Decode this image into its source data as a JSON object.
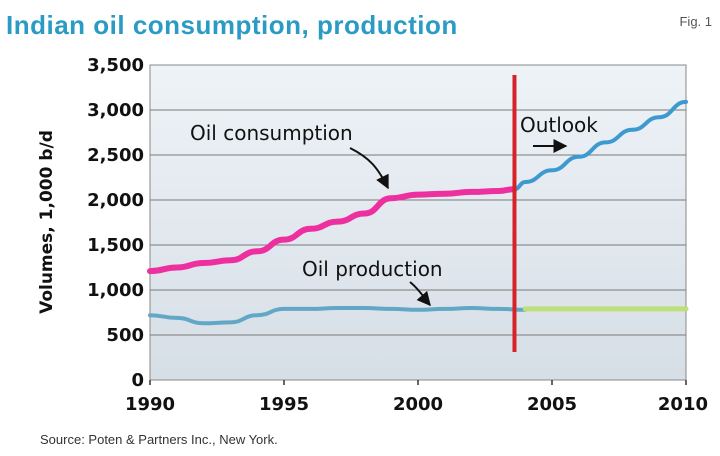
{
  "chart_data": {
    "type": "line",
    "title": "Indian oil consumption, production",
    "figure_label": "Fig. 1",
    "ylabel": "Volumes, 1,000 b/d",
    "xlabel": "",
    "xlim": [
      1990,
      2010
    ],
    "ylim": [
      0,
      3500
    ],
    "xticks": [
      "1990",
      "1995",
      "2000",
      "2005",
      "2010"
    ],
    "yticks": [
      "0",
      "500",
      "1,000",
      "1,500",
      "2,000",
      "2,500",
      "3,000",
      "3,500"
    ],
    "grid": "horizontal",
    "outlook_year": 2003.6,
    "series": [
      {
        "name": "Oil consumption",
        "color": "#ee2fa0",
        "x": [
          1990,
          1991,
          1992,
          1993,
          1994,
          1995,
          1996,
          1997,
          1998,
          1999,
          2000,
          2001,
          2002,
          2003,
          2003.6
        ],
        "y": [
          1210,
          1250,
          1300,
          1330,
          1430,
          1560,
          1680,
          1760,
          1850,
          2020,
          2060,
          2070,
          2090,
          2100,
          2120
        ]
      },
      {
        "name": "Outlook consumption",
        "color": "#3c9ad0",
        "x": [
          2003.6,
          2004,
          2005,
          2006,
          2007,
          2008,
          2009,
          2010
        ],
        "y": [
          2120,
          2200,
          2330,
          2480,
          2640,
          2780,
          2920,
          3090
        ]
      },
      {
        "name": "Oil production",
        "color": "#62a8c6",
        "x": [
          1990,
          1991,
          1992,
          1993,
          1994,
          1995,
          1996,
          1997,
          1998,
          1999,
          2000,
          2001,
          2002,
          2003,
          2004
        ],
        "y": [
          720,
          690,
          630,
          640,
          720,
          790,
          790,
          800,
          800,
          790,
          780,
          790,
          800,
          790,
          780
        ]
      },
      {
        "name": "Outlook production",
        "color": "#bde07a",
        "x": [
          2004,
          2010
        ],
        "y": [
          790,
          790
        ]
      }
    ],
    "annotations": [
      {
        "text": "Oil consumption",
        "target_x": 1999.3,
        "target_y": 2050
      },
      {
        "text": "Oil production",
        "target_x": 2000.7,
        "target_y": 790
      },
      {
        "text": "Outlook",
        "target_x": 2005.3,
        "target_y": 2650
      }
    ],
    "source": "Source: Poten & Partners Inc., New York."
  }
}
